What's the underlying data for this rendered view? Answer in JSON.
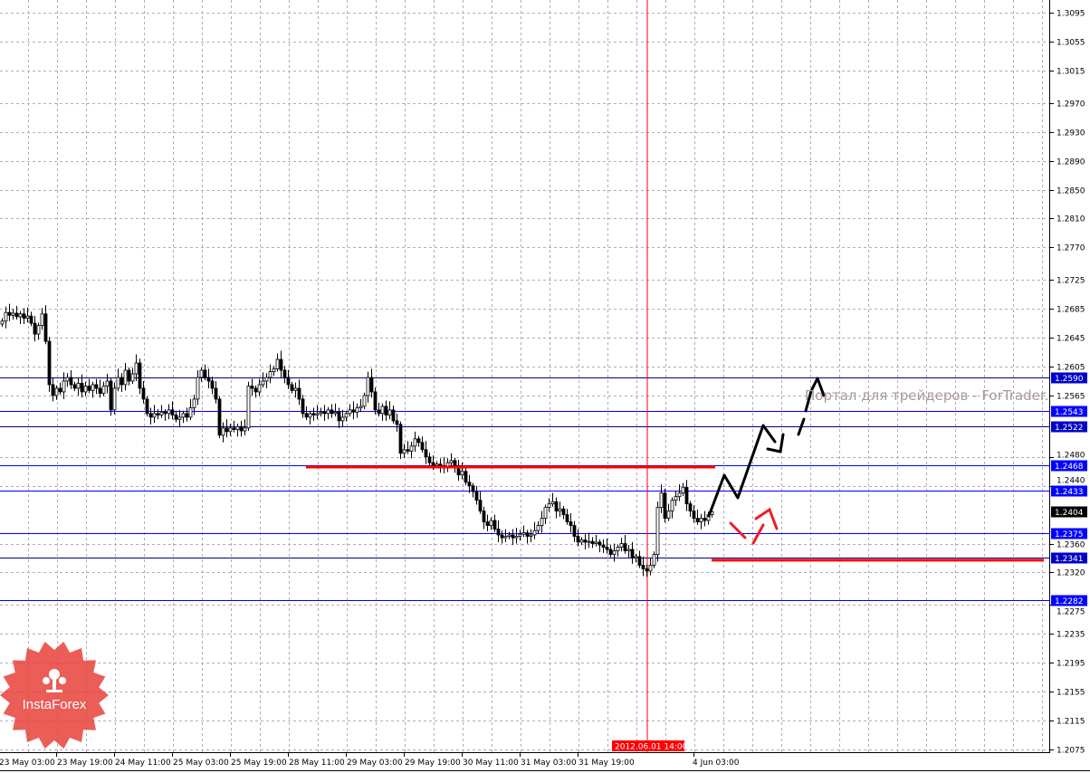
{
  "chart_data": {
    "type": "candlestick",
    "symbol_timeframe": "H1",
    "y_ticks": [
      "1.3095",
      "1.3055",
      "1.3015",
      "1.2970",
      "1.2930",
      "1.2890",
      "1.2850",
      "1.2810",
      "1.2770",
      "1.2725",
      "1.2685",
      "1.2645",
      "1.2605",
      "1.2565",
      "1.2480",
      "1.2440",
      "1.2360",
      "1.2320",
      "1.2275",
      "1.2235",
      "1.2195",
      "1.2155",
      "1.2115",
      "1.2075"
    ],
    "ylim": [
      1.206,
      1.311
    ],
    "x_ticks": [
      "23 May 03:00",
      "23 May 19:00",
      "24 May 11:00",
      "25 May 03:00",
      "25 May 19:00",
      "28 May 11:00",
      "29 May 03:00",
      "29 May 19:00",
      "30 May 11:00",
      "31 May 03:00",
      "31 May 19:00"
    ],
    "x_ticks_tail": [
      "4 Jun 03:00"
    ],
    "cursor_time_label": "2012.06.01 14:00",
    "grid": true,
    "close": [
      1.2668,
      1.268,
      1.2676,
      1.2679,
      1.2674,
      1.2678,
      1.2672,
      1.2675,
      1.2665,
      1.265,
      1.2662,
      1.2678,
      1.264,
      1.258,
      1.2565,
      1.2575,
      1.257,
      1.2585,
      1.259,
      1.258,
      1.2575,
      1.2582,
      1.257,
      1.2578,
      1.2572,
      1.258,
      1.2575,
      1.2568,
      1.2578,
      1.2585,
      1.2545,
      1.2575,
      1.259,
      1.258,
      1.26,
      1.2585,
      1.2595,
      1.261,
      1.2575,
      1.256,
      1.254,
      1.2535,
      1.254,
      1.2538,
      1.2542,
      1.254,
      1.2545,
      1.2538,
      1.2532,
      1.2535,
      1.254,
      1.2535,
      1.2548,
      1.256,
      1.259,
      1.26,
      1.259,
      1.2585,
      1.2575,
      1.256,
      1.251,
      1.252,
      1.2515,
      1.252,
      1.2518,
      1.2522,
      1.2516,
      1.252,
      1.2578,
      1.2575,
      1.257,
      1.258,
      1.2585,
      1.259,
      1.2598,
      1.2602,
      1.2615,
      1.26,
      1.259,
      1.258,
      1.2572,
      1.2575,
      1.256,
      1.254,
      1.2535,
      1.254,
      1.2538,
      1.254,
      1.2542,
      1.254,
      1.2545,
      1.254,
      1.2542,
      1.253,
      1.2535,
      1.254,
      1.2545,
      1.2542,
      1.2548,
      1.255,
      1.2565,
      1.259,
      1.257,
      1.2545,
      1.254,
      1.255,
      1.2538,
      1.2545,
      1.253,
      1.2525,
      1.2485,
      1.249,
      1.2488,
      1.2495,
      1.2505,
      1.25,
      1.249,
      1.248,
      1.2472,
      1.2468,
      1.247,
      1.2468,
      1.2465,
      1.2472,
      1.2475,
      1.2468,
      1.2455,
      1.246,
      1.2445,
      1.244,
      1.2432,
      1.242,
      1.2405,
      1.239,
      1.2385,
      1.2392,
      1.238,
      1.2372,
      1.2368,
      1.237,
      1.2372,
      1.2368,
      1.237,
      1.2373,
      1.2375,
      1.237,
      1.2372,
      1.2378,
      1.2385,
      1.2395,
      1.241,
      1.2415,
      1.2418,
      1.2405,
      1.2408,
      1.24,
      1.239,
      1.2385,
      1.237,
      1.2362,
      1.2365,
      1.2362,
      1.2363,
      1.236,
      1.2362,
      1.2358,
      1.2355,
      1.2352,
      1.2345,
      1.235,
      1.2355,
      1.236,
      1.235,
      1.2352,
      1.234,
      1.2342,
      1.233,
      1.2325,
      1.2322,
      1.233,
      1.2345,
      1.241,
      1.243,
      1.2395,
      1.2405,
      1.242,
      1.2425,
      1.243,
      1.2438,
      1.2415,
      1.2405,
      1.2395,
      1.239,
      1.2395,
      1.2392,
      1.24,
      1.2404
    ],
    "levels": [
      {
        "price": 1.259,
        "label": "1.2590",
        "color": "#000080"
      },
      {
        "price": 1.2543,
        "label": "1.2543",
        "color": "#0000ff"
      },
      {
        "price": 1.2522,
        "label": "1.2522",
        "color": "#000080"
      },
      {
        "price": 1.2468,
        "label": "1.2468",
        "color": "#0000ff"
      },
      {
        "price": 1.2433,
        "label": "1.2433",
        "color": "#0000ff"
      },
      {
        "price": 1.2375,
        "label": "1.2375",
        "color": "#0000ff"
      },
      {
        "price": 1.2341,
        "label": "1.2341",
        "color": "#000080"
      },
      {
        "price": 1.2282,
        "label": "1.2282",
        "color": "#0000ff"
      }
    ],
    "current_price": "1.2404",
    "support_resistance": [
      {
        "price": 1.2466,
        "color": "#ff0000"
      },
      {
        "price": 1.2337,
        "color": "#ff0000"
      }
    ]
  },
  "watermark": "Портал для трейдеров - ForTrader.ru",
  "logo": {
    "text": "InstaForex",
    "color": "#e8413a"
  }
}
